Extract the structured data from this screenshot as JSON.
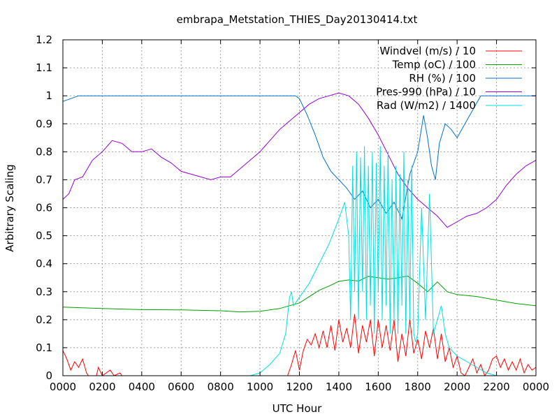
{
  "chart_data": {
    "type": "line",
    "title": "embrapa_Metstation_THIES_Day20130414.txt",
    "xlabel": "UTC Hour",
    "ylabel": "Arbitrary Scaling",
    "xlim": [
      0,
      2400
    ],
    "ylim": [
      0,
      1.2
    ],
    "grid": true,
    "legend_position": "top-right",
    "x_tick_labels": [
      "0000",
      "0200",
      "0400",
      "0600",
      "0800",
      "1000",
      "1200",
      "1400",
      "1600",
      "1800",
      "2000",
      "2200",
      "0000"
    ],
    "y_tick_labels": [
      "0",
      "0.1",
      "0.2",
      "0.3",
      "0.4",
      "0.5",
      "0.6",
      "0.7",
      "0.8",
      "0.9",
      "1",
      "1.1",
      "1.2"
    ],
    "series": [
      {
        "name": "Windvel (m/s) / 10",
        "color": "#ff0000",
        "points": [
          [
            0,
            0.09
          ],
          [
            20,
            0.06
          ],
          [
            40,
            0.02
          ],
          [
            60,
            0.05
          ],
          [
            80,
            0.03
          ],
          [
            100,
            0.06
          ],
          [
            120,
            0.01
          ],
          [
            130,
            0
          ],
          [
            170,
            0
          ],
          [
            180,
            0.03
          ],
          [
            200,
            0
          ],
          [
            240,
            0.02
          ],
          [
            260,
            0
          ],
          [
            290,
            0.01
          ],
          [
            300,
            0
          ],
          [
            1140,
            0
          ],
          [
            1160,
            0.04
          ],
          [
            1180,
            0.09
          ],
          [
            1200,
            0.02
          ],
          [
            1220,
            0.09
          ],
          [
            1240,
            0.13
          ],
          [
            1260,
            0.11
          ],
          [
            1280,
            0.15
          ],
          [
            1300,
            0.1
          ],
          [
            1320,
            0.16
          ],
          [
            1340,
            0.1
          ],
          [
            1360,
            0.18
          ],
          [
            1380,
            0.09
          ],
          [
            1400,
            0.2
          ],
          [
            1420,
            0.12
          ],
          [
            1440,
            0.17
          ],
          [
            1460,
            0.1
          ],
          [
            1480,
            0.22
          ],
          [
            1500,
            0.08
          ],
          [
            1520,
            0.18
          ],
          [
            1540,
            0.12
          ],
          [
            1560,
            0.2
          ],
          [
            1580,
            0.07
          ],
          [
            1600,
            0.2
          ],
          [
            1620,
            0.1
          ],
          [
            1640,
            0.18
          ],
          [
            1660,
            0.09
          ],
          [
            1680,
            0.2
          ],
          [
            1700,
            0.05
          ],
          [
            1720,
            0.15
          ],
          [
            1740,
            0.07
          ],
          [
            1760,
            0.2
          ],
          [
            1780,
            0.08
          ],
          [
            1800,
            0.13
          ],
          [
            1820,
            0.06
          ],
          [
            1840,
            0.16
          ],
          [
            1860,
            0.1
          ],
          [
            1880,
            0.17
          ],
          [
            1900,
            0.06
          ],
          [
            1920,
            0.15
          ],
          [
            1940,
            0.05
          ],
          [
            1960,
            0.1
          ],
          [
            1980,
            0.03
          ],
          [
            2000,
            0.07
          ],
          [
            2020,
            0.01
          ],
          [
            2040,
            0
          ],
          [
            2060,
            0.03
          ],
          [
            2080,
            0.06
          ],
          [
            2100,
            0.01
          ],
          [
            2120,
            0.04
          ],
          [
            2140,
            0
          ],
          [
            2160,
            0.02
          ],
          [
            2180,
            0.06
          ],
          [
            2200,
            0.07
          ],
          [
            2220,
            0.03
          ],
          [
            2240,
            0.06
          ],
          [
            2260,
            0.02
          ],
          [
            2280,
            0.05
          ],
          [
            2300,
            0.02
          ],
          [
            2320,
            0.06
          ],
          [
            2340,
            0.01
          ],
          [
            2360,
            0.04
          ],
          [
            2380,
            0.02
          ],
          [
            2400,
            0.03
          ]
        ]
      },
      {
        "name": "Temp (oC) / 100",
        "color": "#00a000",
        "points": [
          [
            0,
            0.245
          ],
          [
            200,
            0.24
          ],
          [
            400,
            0.236
          ],
          [
            600,
            0.235
          ],
          [
            800,
            0.232
          ],
          [
            900,
            0.228
          ],
          [
            1000,
            0.23
          ],
          [
            1100,
            0.24
          ],
          [
            1200,
            0.26
          ],
          [
            1300,
            0.305
          ],
          [
            1350,
            0.32
          ],
          [
            1400,
            0.337
          ],
          [
            1450,
            0.342
          ],
          [
            1500,
            0.338
          ],
          [
            1550,
            0.355
          ],
          [
            1600,
            0.35
          ],
          [
            1650,
            0.345
          ],
          [
            1700,
            0.35
          ],
          [
            1750,
            0.356
          ],
          [
            1800,
            0.33
          ],
          [
            1850,
            0.3
          ],
          [
            1900,
            0.335
          ],
          [
            1950,
            0.3
          ],
          [
            2000,
            0.29
          ],
          [
            2100,
            0.283
          ],
          [
            2200,
            0.27
          ],
          [
            2300,
            0.258
          ],
          [
            2400,
            0.25
          ]
        ]
      },
      {
        "name": "RH (%) / 100",
        "color": "#0070d0",
        "points": [
          [
            0,
            0.98
          ],
          [
            80,
            1.0
          ],
          [
            300,
            1.0
          ],
          [
            800,
            1.0
          ],
          [
            1100,
            1.0
          ],
          [
            1180,
            1.0
          ],
          [
            1200,
            0.99
          ],
          [
            1240,
            0.93
          ],
          [
            1280,
            0.86
          ],
          [
            1320,
            0.78
          ],
          [
            1360,
            0.73
          ],
          [
            1400,
            0.7
          ],
          [
            1440,
            0.67
          ],
          [
            1480,
            0.63
          ],
          [
            1520,
            0.66
          ],
          [
            1560,
            0.6
          ],
          [
            1600,
            0.63
          ],
          [
            1640,
            0.58
          ],
          [
            1680,
            0.62
          ],
          [
            1720,
            0.56
          ],
          [
            1760,
            0.72
          ],
          [
            1800,
            0.8
          ],
          [
            1830,
            0.93
          ],
          [
            1850,
            0.85
          ],
          [
            1870,
            0.75
          ],
          [
            1890,
            0.7
          ],
          [
            1910,
            0.83
          ],
          [
            1940,
            0.9
          ],
          [
            1970,
            0.88
          ],
          [
            2000,
            0.85
          ],
          [
            2040,
            0.9
          ],
          [
            2080,
            0.95
          ],
          [
            2120,
            1.0
          ],
          [
            2200,
            1.0
          ],
          [
            2400,
            1.0
          ]
        ]
      },
      {
        "name": "Pres-990 (hPa) / 10",
        "color": "#9400d3",
        "points": [
          [
            0,
            0.63
          ],
          [
            30,
            0.65
          ],
          [
            60,
            0.7
          ],
          [
            100,
            0.71
          ],
          [
            150,
            0.77
          ],
          [
            200,
            0.8
          ],
          [
            250,
            0.84
          ],
          [
            300,
            0.83
          ],
          [
            350,
            0.8
          ],
          [
            400,
            0.8
          ],
          [
            450,
            0.81
          ],
          [
            500,
            0.78
          ],
          [
            550,
            0.76
          ],
          [
            600,
            0.73
          ],
          [
            650,
            0.72
          ],
          [
            700,
            0.71
          ],
          [
            750,
            0.7
          ],
          [
            800,
            0.71
          ],
          [
            850,
            0.71
          ],
          [
            900,
            0.74
          ],
          [
            950,
            0.77
          ],
          [
            1000,
            0.8
          ],
          [
            1050,
            0.84
          ],
          [
            1100,
            0.88
          ],
          [
            1150,
            0.91
          ],
          [
            1200,
            0.94
          ],
          [
            1250,
            0.97
          ],
          [
            1300,
            0.99
          ],
          [
            1350,
            1.0
          ],
          [
            1400,
            1.01
          ],
          [
            1450,
            1.0
          ],
          [
            1500,
            0.97
          ],
          [
            1550,
            0.92
          ],
          [
            1600,
            0.86
          ],
          [
            1650,
            0.79
          ],
          [
            1700,
            0.72
          ],
          [
            1750,
            0.67
          ],
          [
            1800,
            0.63
          ],
          [
            1850,
            0.6
          ],
          [
            1900,
            0.57
          ],
          [
            1950,
            0.53
          ],
          [
            2000,
            0.55
          ],
          [
            2050,
            0.57
          ],
          [
            2100,
            0.58
          ],
          [
            2150,
            0.6
          ],
          [
            2200,
            0.63
          ],
          [
            2250,
            0.68
          ],
          [
            2300,
            0.72
          ],
          [
            2350,
            0.75
          ],
          [
            2400,
            0.77
          ]
        ]
      },
      {
        "name": "Rad (W/m2) / 1400",
        "color": "#00e0e0",
        "points": [
          [
            0,
            0
          ],
          [
            950,
            0
          ],
          [
            1000,
            0.01
          ],
          [
            1050,
            0.04
          ],
          [
            1100,
            0.08
          ],
          [
            1130,
            0.15
          ],
          [
            1150,
            0.28
          ],
          [
            1160,
            0.3
          ],
          [
            1170,
            0.25
          ],
          [
            1200,
            0.28
          ],
          [
            1250,
            0.33
          ],
          [
            1300,
            0.4
          ],
          [
            1350,
            0.47
          ],
          [
            1400,
            0.56
          ],
          [
            1430,
            0.62
          ],
          [
            1450,
            0.5
          ],
          [
            1460,
            0.2
          ],
          [
            1470,
            0.75
          ],
          [
            1480,
            0.3
          ],
          [
            1490,
            0.8
          ],
          [
            1500,
            0.2
          ],
          [
            1510,
            0.78
          ],
          [
            1520,
            0.3
          ],
          [
            1530,
            0.82
          ],
          [
            1540,
            0.2
          ],
          [
            1550,
            0.75
          ],
          [
            1560,
            0.25
          ],
          [
            1570,
            0.8
          ],
          [
            1580,
            0.15
          ],
          [
            1590,
            0.76
          ],
          [
            1600,
            0.3
          ],
          [
            1610,
            0.82
          ],
          [
            1620,
            0.2
          ],
          [
            1630,
            0.75
          ],
          [
            1640,
            0.25
          ],
          [
            1650,
            0.8
          ],
          [
            1660,
            0.15
          ],
          [
            1670,
            0.7
          ],
          [
            1680,
            0.2
          ],
          [
            1690,
            0.75
          ],
          [
            1700,
            0.15
          ],
          [
            1710,
            0.72
          ],
          [
            1720,
            0.25
          ],
          [
            1730,
            0.8
          ],
          [
            1740,
            0.15
          ],
          [
            1750,
            0.7
          ],
          [
            1760,
            0.2
          ],
          [
            1770,
            0.75
          ],
          [
            1780,
            0.15
          ],
          [
            1790,
            0.12
          ],
          [
            1800,
            0.15
          ],
          [
            1820,
            0.6
          ],
          [
            1840,
            0.2
          ],
          [
            1860,
            0.65
          ],
          [
            1880,
            0.15
          ],
          [
            1900,
            0.2
          ],
          [
            1920,
            0.25
          ],
          [
            1940,
            0.15
          ],
          [
            1960,
            0.1
          ],
          [
            2000,
            0.07
          ],
          [
            2050,
            0.05
          ],
          [
            2100,
            0.03
          ],
          [
            2150,
            0.01
          ],
          [
            2200,
            0
          ],
          [
            2400,
            0
          ]
        ]
      }
    ]
  }
}
